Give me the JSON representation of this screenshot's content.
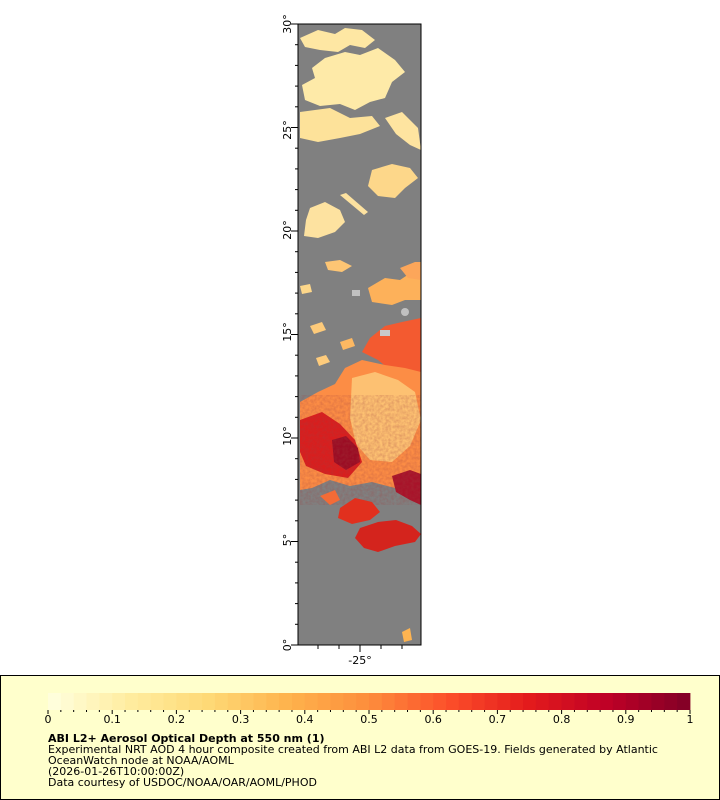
{
  "map": {
    "y_axis": {
      "ticks": [
        "0°",
        "5°",
        "10°",
        "15°",
        "20°",
        "25°",
        "30°"
      ]
    },
    "x_axis": {
      "ticks": [
        "-25°"
      ]
    },
    "colors": {
      "background": "#808080",
      "missing": "#c0c0c0"
    },
    "color_scale": [
      "#ffffe0",
      "#ffeda0",
      "#fed976",
      "#feb24c",
      "#fd8d3c",
      "#fc4e2a",
      "#e31a1c",
      "#bd0026",
      "#800026"
    ]
  },
  "legend": {
    "range": [
      0,
      1
    ],
    "tick_labels": [
      "0",
      "0.1",
      "0.2",
      "0.3",
      "0.4",
      "0.5",
      "0.6",
      "0.7",
      "0.8",
      "0.9",
      "1"
    ],
    "title": "ABI L2+ Aerosol Optical Depth at 550 nm (1)",
    "description": "Experimental NRT AOD 4 hour composite created from ABI L2 data from GOES-19. Fields generated by Atlantic OceanWatch node at NOAA/AOML",
    "timestamp": "(2026-01-26T10:00:00Z)",
    "credit": "Data courtesy of USDOC/NOAA/OAR/AOML/PHOD"
  }
}
